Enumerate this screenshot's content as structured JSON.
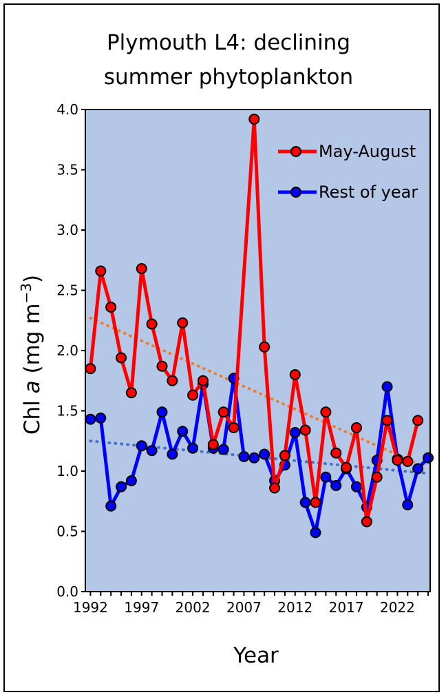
{
  "chart_data": {
    "type": "line",
    "title_lines": [
      "Plymouth L4: declining",
      "summer phytoplankton"
    ],
    "xlabel": "Year",
    "ylabel_parts": {
      "main": "Chl ",
      "italic": "a",
      "unit": " (mg m",
      "sup": "−3",
      "close": ")"
    },
    "ylim": [
      0,
      4.0
    ],
    "xlim": [
      1991.5,
      2025.2
    ],
    "yticks": [
      "0.0",
      "0.5",
      "1.0",
      "1.5",
      "2.0",
      "2.5",
      "3.0",
      "3.5",
      "4.0"
    ],
    "xticks": [
      "1992",
      "1997",
      "2002",
      "2007",
      "2012",
      "2017",
      "2022"
    ],
    "plot_background": "#b4c7e7",
    "series": [
      {
        "name": "May-August",
        "color": "#ff0000",
        "x": [
          1992,
          1993,
          1994,
          1995,
          1996,
          1997,
          1998,
          1999,
          2000,
          2001,
          2002,
          2003,
          2004,
          2005,
          2006,
          2008,
          2009,
          2010,
          2011,
          2012,
          2013,
          2014,
          2015,
          2016,
          2017,
          2018,
          2019,
          2020,
          2021,
          2022,
          2023,
          2024
        ],
        "y": [
          1.85,
          2.66,
          2.36,
          1.94,
          1.65,
          2.68,
          2.22,
          1.87,
          1.75,
          2.23,
          1.63,
          1.75,
          1.22,
          1.49,
          1.36,
          3.92,
          2.03,
          0.86,
          1.13,
          1.8,
          1.34,
          0.74,
          1.49,
          1.15,
          1.03,
          1.36,
          0.58,
          0.95,
          1.42,
          1.09,
          1.08,
          1.42
        ]
      },
      {
        "name": "Rest of year",
        "color": "#0000ff",
        "x": [
          1992,
          1993,
          1994,
          1995,
          1996,
          1997,
          1998,
          1999,
          2000,
          2001,
          2002,
          2003,
          2004,
          2005,
          2006,
          2007,
          2008,
          2009,
          2010,
          2011,
          2012,
          2013,
          2014,
          2015,
          2016,
          2017,
          2018,
          2019,
          2020,
          2021,
          2022,
          2023,
          2024,
          2025
        ],
        "y": [
          1.43,
          1.44,
          0.71,
          0.87,
          0.92,
          1.21,
          1.17,
          1.49,
          1.14,
          1.33,
          1.19,
          1.72,
          1.19,
          1.18,
          1.77,
          1.12,
          1.11,
          1.14,
          0.92,
          1.05,
          1.32,
          0.74,
          0.49,
          0.95,
          0.88,
          1.02,
          0.87,
          0.7,
          1.09,
          1.7,
          1.1,
          0.72,
          1.02,
          1.11
        ]
      }
    ],
    "trendlines": [
      {
        "series": "May-August",
        "color": "#ed7d31",
        "x": [
          1992,
          2024
        ],
        "y": [
          2.27,
          1.06
        ]
      },
      {
        "series": "Rest of year",
        "color": "#4472c4",
        "x": [
          1992,
          2025
        ],
        "y": [
          1.25,
          0.98
        ]
      }
    ],
    "legend_position": "top-right"
  }
}
